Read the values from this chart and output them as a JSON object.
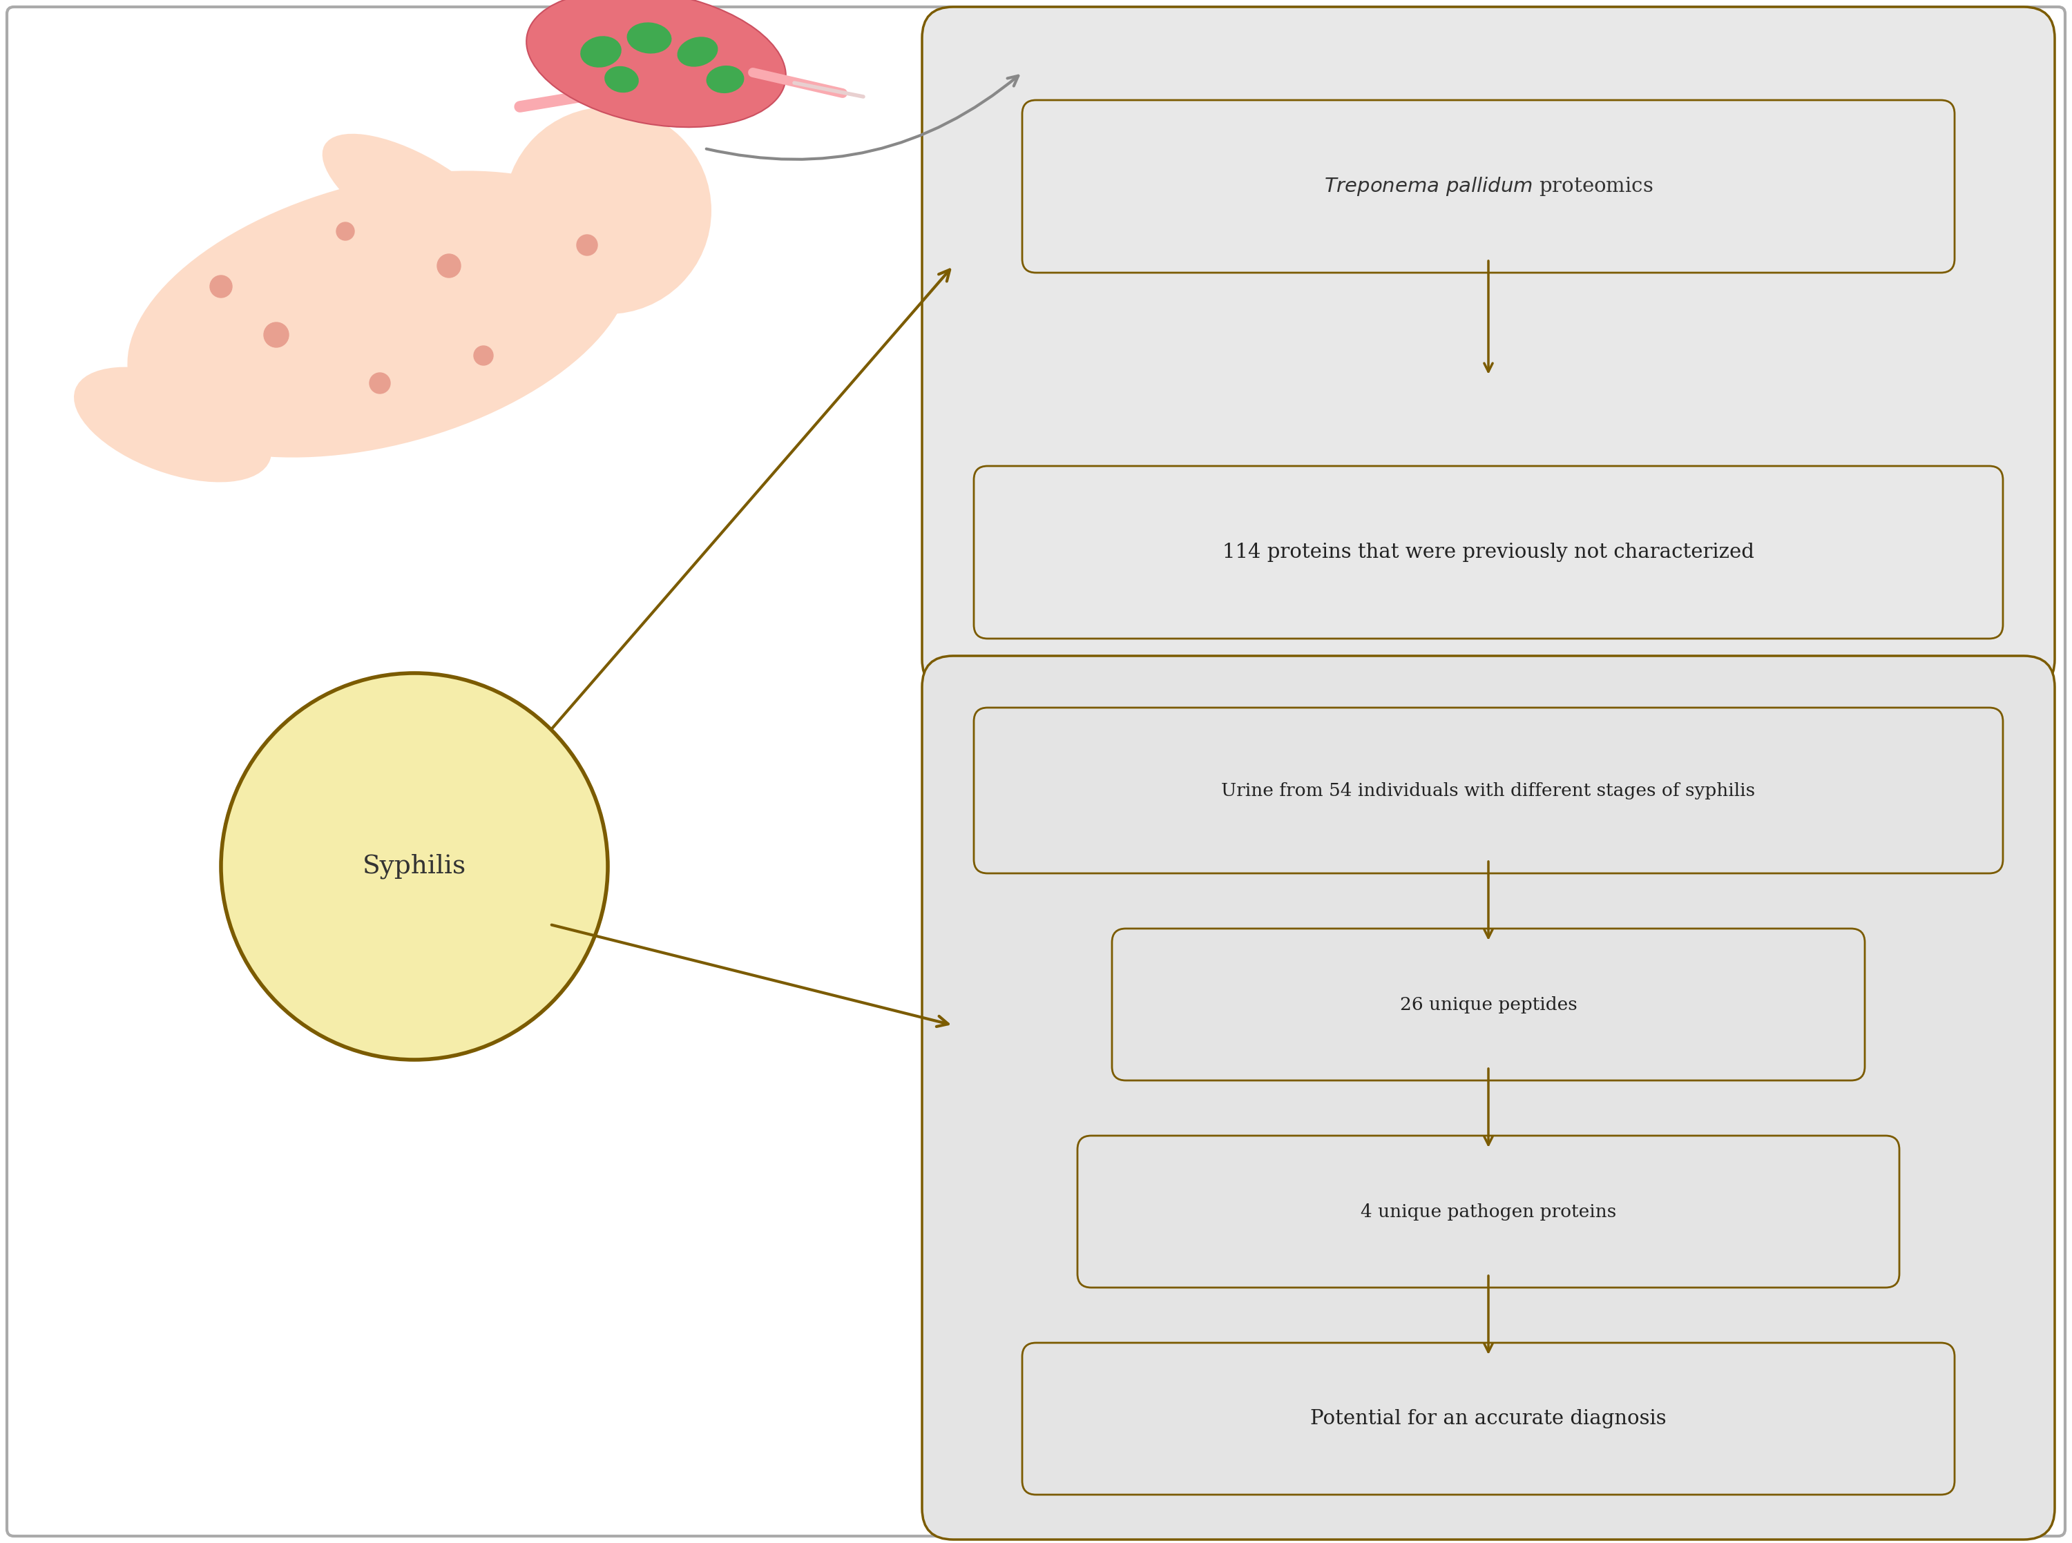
{
  "bg_color": "#ffffff",
  "outer_border_color": "#999999",
  "gold_color": "#7B5B00",
  "box_bg_top": "#e8e8e8",
  "box_bg_bottom": "#e4e4e4",
  "circle_fill": "#F5EDAA",
  "circle_edge": "#7B5B00",
  "circle_text": "Syphilis",
  "top_box_label1_italic": "Treponema pallidum",
  "top_box_label1_normal": " proteomics",
  "top_box_label2": "114 proteins that were previously not characterized",
  "bottom_box_label1": "Urine from 54 individuals with different stages of syphilis",
  "bottom_box_label2": "26 unique peptides",
  "bottom_box_label3": "4 unique pathogen proteins",
  "bottom_box_label4": "Potential for an accurate diagnosis",
  "figw": 30.0,
  "figh": 22.35
}
